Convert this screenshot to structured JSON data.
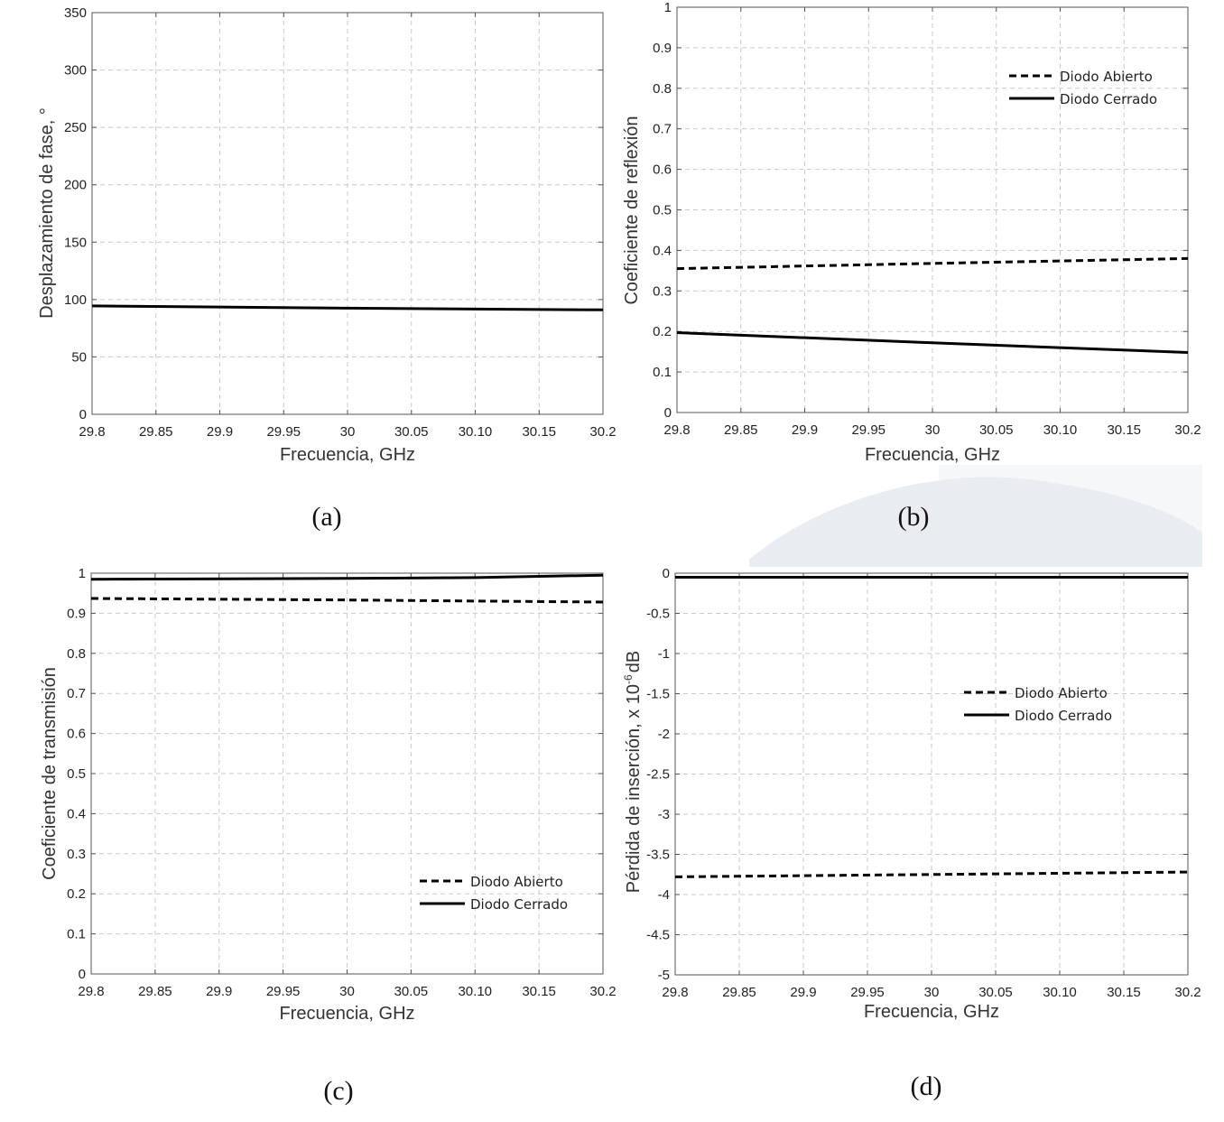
{
  "chart_data": [
    {
      "id": "a",
      "type": "line",
      "panel_label": "(a)",
      "title": "",
      "xlabel": "Frecuencia, GHz",
      "ylabel": "Desplazamiento de fase, °",
      "xlim": [
        29.8,
        30.2
      ],
      "ylim": [
        0,
        350
      ],
      "x_ticks": [
        29.8,
        29.85,
        29.9,
        29.95,
        30.0,
        30.05,
        30.1,
        30.15,
        30.2
      ],
      "x_tick_labels": [
        "29.8",
        "29.85",
        "29.9",
        "29.95",
        "30",
        "30.05",
        "30.10",
        "30.15",
        "30.2"
      ],
      "y_ticks": [
        0,
        50,
        100,
        150,
        200,
        250,
        300,
        350
      ],
      "y_tick_labels": [
        "0",
        "50",
        "100",
        "150",
        "200",
        "250",
        "300",
        "350"
      ],
      "grid": true,
      "series": [
        {
          "name": "",
          "style": "solid",
          "x": [
            29.8,
            30.0,
            30.2
          ],
          "y": [
            94.5,
            92.5,
            91.0
          ]
        }
      ]
    },
    {
      "id": "b",
      "type": "line",
      "panel_label": "(b)",
      "title": "",
      "xlabel": "Frecuencia, GHz",
      "ylabel": "Coeficiente de reflexión",
      "xlim": [
        29.8,
        30.2
      ],
      "ylim": [
        0,
        1
      ],
      "x_ticks": [
        29.8,
        29.85,
        29.9,
        29.95,
        30.0,
        30.05,
        30.1,
        30.15,
        30.2
      ],
      "x_tick_labels": [
        "29.8",
        "29.85",
        "29.9",
        "29.95",
        "30",
        "30.05",
        "30.10",
        "30.15",
        "30.2"
      ],
      "y_ticks": [
        0,
        0.1,
        0.2,
        0.3,
        0.4,
        0.5,
        0.6,
        0.7,
        0.8,
        0.9,
        1
      ],
      "y_tick_labels": [
        "0",
        "0.1",
        "0.2",
        "0.3",
        "0.4",
        "0.5",
        "0.6",
        "0.7",
        "0.8",
        "0.9",
        "1"
      ],
      "grid": true,
      "legend_position": "top-right",
      "series": [
        {
          "name": "Diodo Abierto",
          "style": "dashed",
          "x": [
            29.8,
            30.0,
            30.2
          ],
          "y": [
            0.355,
            0.368,
            0.38
          ]
        },
        {
          "name": "Diodo Cerrado",
          "style": "solid",
          "x": [
            29.8,
            30.0,
            30.2
          ],
          "y": [
            0.197,
            0.172,
            0.148
          ]
        }
      ]
    },
    {
      "id": "c",
      "type": "line",
      "panel_label": "(c)",
      "title": "",
      "xlabel": "Frecuencia, GHz",
      "ylabel": "Coeficiente de transmisión",
      "xlim": [
        29.8,
        30.2
      ],
      "ylim": [
        0,
        1
      ],
      "x_ticks": [
        29.8,
        29.85,
        29.9,
        29.95,
        30.0,
        30.05,
        30.1,
        30.15,
        30.2
      ],
      "x_tick_labels": [
        "29.8",
        "29.85",
        "29.9",
        "29.95",
        "30",
        "30.05",
        "30.10",
        "30.15",
        "30.2"
      ],
      "y_ticks": [
        0,
        0.1,
        0.2,
        0.3,
        0.4,
        0.5,
        0.6,
        0.7,
        0.8,
        0.9,
        1
      ],
      "y_tick_labels": [
        "0",
        "0.1",
        "0.2",
        "0.3",
        "0.4",
        "0.5",
        "0.6",
        "0.7",
        "0.8",
        "0.9",
        "1"
      ],
      "grid": true,
      "legend_position": "bottom-right",
      "series": [
        {
          "name": "Diodo Abierto",
          "style": "dashed",
          "x": [
            29.8,
            30.0,
            30.2
          ],
          "y": [
            0.937,
            0.933,
            0.928
          ]
        },
        {
          "name": "Diodo Cerrado",
          "style": "solid",
          "x": [
            29.8,
            30.0,
            30.1,
            30.2
          ],
          "y": [
            0.985,
            0.987,
            0.989,
            0.995
          ]
        }
      ]
    },
    {
      "id": "d",
      "type": "line",
      "panel_label": "(d)",
      "title": "",
      "xlabel": "Frecuencia, GHz",
      "ylabel_prefix": "Pérdida de inserción, x 10",
      "ylabel_exponent": "-6",
      "ylabel_suffix": "dB",
      "xlim": [
        29.8,
        30.2
      ],
      "ylim": [
        -5,
        0
      ],
      "x_ticks": [
        29.8,
        29.85,
        29.9,
        29.95,
        30.0,
        30.05,
        30.1,
        30.15,
        30.2
      ],
      "x_tick_labels": [
        "29.8",
        "29.85",
        "29.9",
        "29.95",
        "30",
        "30.05",
        "30.10",
        "30.15",
        "30.2"
      ],
      "y_ticks": [
        0,
        -0.5,
        -1,
        -1.5,
        -2,
        -2.5,
        -3,
        -3.5,
        -4,
        -4.5,
        -5
      ],
      "y_tick_labels": [
        "0",
        "-0.5",
        "-1",
        "-1.5",
        "-2",
        "-2.5",
        "-3",
        "-3.5",
        "-4",
        "-4.5",
        "-5"
      ],
      "grid": true,
      "legend_position": "center-right",
      "series": [
        {
          "name": "Diodo Abierto",
          "style": "dashed",
          "x": [
            29.8,
            30.0,
            30.2
          ],
          "y": [
            -3.78,
            -3.75,
            -3.72
          ]
        },
        {
          "name": "Diodo Cerrado",
          "style": "solid",
          "x": [
            29.8,
            30.0,
            30.2
          ],
          "y": [
            -0.05,
            -0.05,
            -0.05
          ]
        }
      ]
    }
  ]
}
